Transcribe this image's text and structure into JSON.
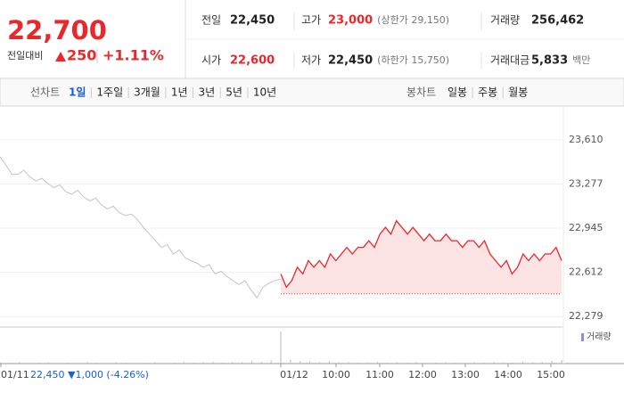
{
  "header": {
    "price": "22,700",
    "change_label": "전일대비",
    "change": "250",
    "change_rate": "+1.11%",
    "up_color": "#e8282b",
    "stats": [
      {
        "label": "전일",
        "value": "22,450",
        "color": "#222222"
      },
      {
        "label": "고가",
        "value": "23,000",
        "extra": "(상한가 29,150)",
        "color": "#e8282b"
      },
      {
        "label": "거래량",
        "value": "256,462",
        "color": "#222222"
      },
      {
        "label": "시가",
        "value": "22,600",
        "color": "#e8282b"
      },
      {
        "label": "저가",
        "value": "22,450",
        "extra": "(하한가 15,750)",
        "color": "#222222"
      },
      {
        "label": "거래대금",
        "value": "5,833",
        "extra": "백만",
        "color": "#222222"
      }
    ]
  },
  "tabs": {
    "line_label": "선차트",
    "line_items": [
      "1일",
      "1주일",
      "3개월",
      "1년",
      "3년",
      "5년",
      "10년"
    ],
    "selected": 0,
    "candle_label": "봉차트",
    "candle_items": [
      "일봉",
      "주봉",
      "월봉"
    ]
  },
  "chart_data": {
    "type": "line",
    "series": [
      {
        "name": "01/11",
        "color": "#c4c4c4",
        "values": [
          23480,
          23420,
          23350,
          23350,
          23380,
          23330,
          23300,
          23320,
          23280,
          23250,
          23270,
          23220,
          23200,
          23230,
          23180,
          23150,
          23170,
          23120,
          23090,
          23110,
          23060,
          23040,
          23050,
          23010,
          22950,
          22900,
          22850,
          22800,
          22820,
          22750,
          22780,
          22720,
          22700,
          22680,
          22650,
          22670,
          22600,
          22620,
          22580,
          22550,
          22520,
          22550,
          22480,
          22420,
          22500,
          22530,
          22550,
          22560
        ]
      },
      {
        "name": "01/12",
        "color": "#e8282b",
        "values": [
          22600,
          22500,
          22550,
          22650,
          22600,
          22700,
          22650,
          22700,
          22650,
          22750,
          22700,
          22750,
          22800,
          22750,
          22800,
          22800,
          22850,
          22800,
          22900,
          22950,
          22900,
          23000,
          22950,
          22900,
          22950,
          22900,
          22850,
          22900,
          22850,
          22850,
          22900,
          22850,
          22850,
          22800,
          22850,
          22850,
          22800,
          22850,
          22750,
          22700,
          22650,
          22700,
          22600,
          22650,
          22750,
          22700,
          22750,
          22700,
          22750,
          22750,
          22800,
          22700
        ]
      }
    ],
    "base": 22450,
    "fill_color": "#fde4e4",
    "ylim": [
      22200,
      23750
    ],
    "yticks": [
      {
        "value": 22279,
        "label": "22,279"
      },
      {
        "value": 22612,
        "label": "22,612"
      },
      {
        "value": 22945,
        "label": "22,945"
      },
      {
        "value": 23277,
        "label": "23,277"
      },
      {
        "value": 23610,
        "label": "23,610"
      }
    ],
    "grid": true,
    "x_labels": [
      "10:00",
      "11:00",
      "12:00",
      "13:00",
      "14:00",
      "15:00"
    ],
    "info": "22,450 ▼1,000 (-4.26%)",
    "volume_legend": "거래량",
    "volume_color": "#b9b9b9",
    "volume": [
      [
        4,
        3,
        5,
        2,
        3,
        4,
        2,
        3,
        2,
        5,
        3,
        2,
        4,
        3,
        2,
        3,
        4,
        2,
        3,
        5,
        3,
        4,
        6,
        3,
        5,
        4,
        8,
        6,
        10,
        14
      ],
      [
        100,
        12,
        8,
        6,
        5,
        7,
        4,
        5,
        3,
        4,
        6,
        3,
        4,
        3,
        5,
        2,
        3,
        4,
        3,
        2,
        4,
        3,
        5,
        4,
        3,
        6,
        4,
        5,
        8,
        12
      ]
    ]
  }
}
